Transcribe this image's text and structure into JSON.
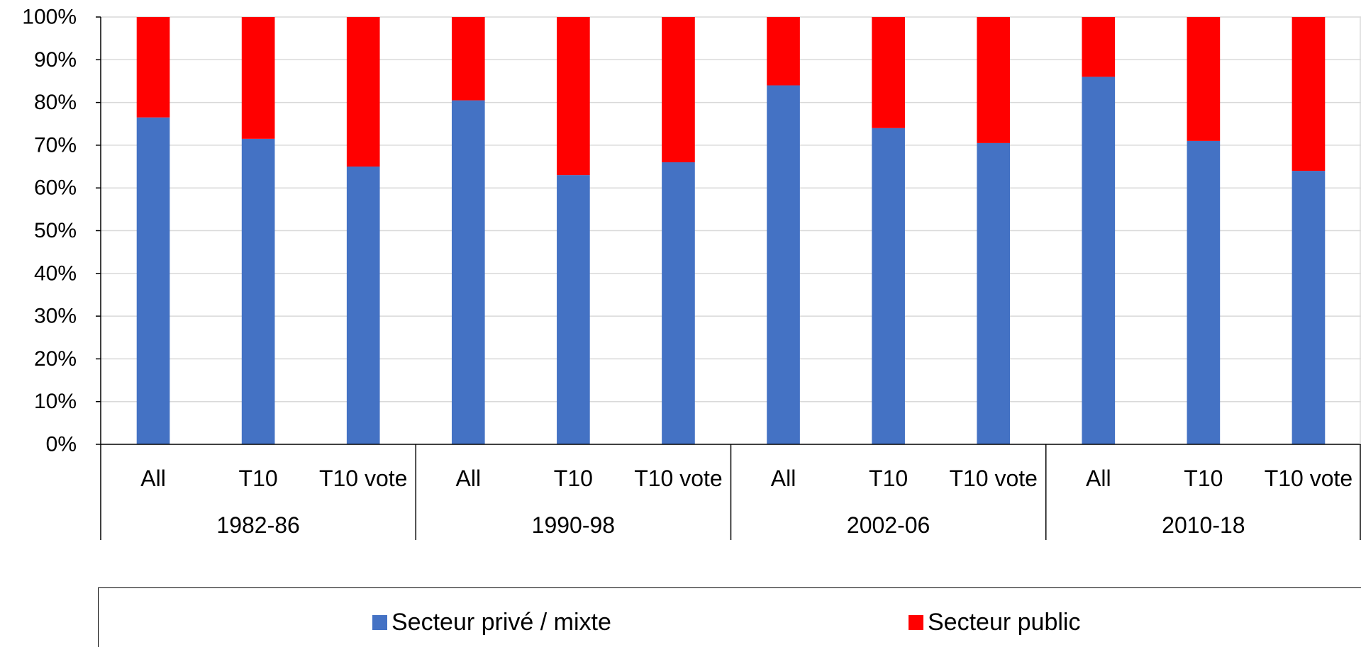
{
  "chart_data": {
    "type": "bar",
    "stacked": true,
    "percent": true,
    "groups": [
      {
        "label": "1982-86",
        "categories": [
          "All",
          "T10",
          "T10 vote"
        ]
      },
      {
        "label": "1990-98",
        "categories": [
          "All",
          "T10",
          "T10 vote"
        ]
      },
      {
        "label": "2002-06",
        "categories": [
          "All",
          "T10",
          "T10 vote"
        ]
      },
      {
        "label": "2010-18",
        "categories": [
          "All",
          "T10",
          "T10 vote"
        ]
      }
    ],
    "series": [
      {
        "name": "Secteur privé / mixte",
        "color": "#4472C4",
        "values": [
          76.5,
          71.5,
          65,
          80.5,
          63,
          66,
          84,
          74,
          70.5,
          86,
          71,
          64
        ]
      },
      {
        "name": "Secteur public",
        "color": "#FF0000",
        "values": [
          23.5,
          28.5,
          35,
          19.5,
          37,
          34,
          16,
          26,
          29.5,
          14,
          29,
          36
        ]
      }
    ],
    "y_ticks": [
      "0%",
      "10%",
      "20%",
      "30%",
      "40%",
      "50%",
      "60%",
      "70%",
      "80%",
      "90%",
      "100%"
    ],
    "ylim": [
      0,
      100
    ],
    "grid": true,
    "legend_position": "bottom",
    "title": "",
    "xlabel": "",
    "ylabel": ""
  }
}
